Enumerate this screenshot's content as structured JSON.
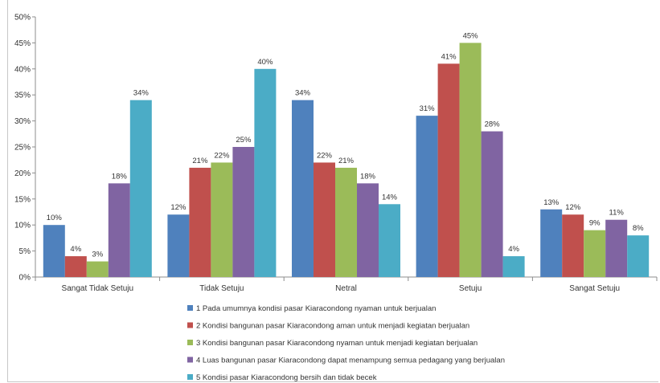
{
  "chart_data": {
    "type": "bar",
    "title": "",
    "xlabel": "",
    "ylabel": "",
    "ylim": [
      0,
      50
    ],
    "y_tick_step": 5,
    "y_tick_suffix": "%",
    "grid": false,
    "legend_position": "bottom",
    "categories": [
      "Sangat Tidak Setuju",
      "Tidak Setuju",
      "Netral",
      "Setuju",
      "Sangat Setuju"
    ],
    "series": [
      {
        "name": "1 Pada umumnya kondisi pasar Kiaracondong nyaman untuk berjualan",
        "color": "#4f81bd",
        "values": [
          10,
          12,
          34,
          31,
          13
        ]
      },
      {
        "name": "2 Kondisi bangunan pasar Kiaracondong aman untuk menjadi kegiatan berjualan",
        "color": "#c0504d",
        "values": [
          4,
          21,
          22,
          41,
          12
        ]
      },
      {
        "name": "3 Kondisi bangunan pasar Kiaracondong nyaman untuk menjadi kegiatan berjualan",
        "color": "#9bbb59",
        "values": [
          3,
          22,
          21,
          45,
          9
        ]
      },
      {
        "name": "4 Luas bangunan pasar Kiaracondong dapat menampung semua pedagang yang berjualan",
        "color": "#8064a2",
        "values": [
          18,
          25,
          18,
          28,
          11
        ]
      },
      {
        "name": "5 Kondisi pasar Kiaracondong bersih dan tidak becek",
        "color": "#4bacc6",
        "values": [
          34,
          40,
          14,
          4,
          8
        ]
      }
    ]
  }
}
